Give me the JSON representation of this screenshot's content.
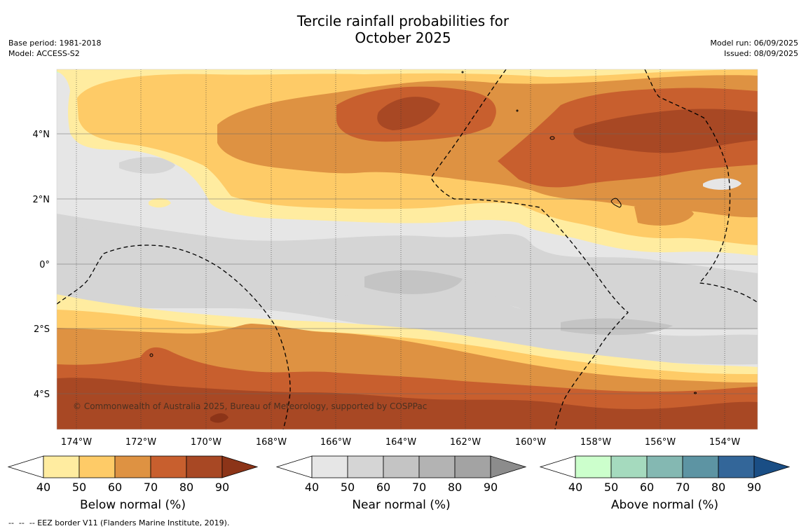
{
  "title_line1": "Tercile rainfall probabilities for",
  "title_line2": "October 2025",
  "meta_left": {
    "base_period": "Base period: 1981-2018",
    "model": "Model: ACCESS-S2"
  },
  "meta_right": {
    "model_run": "Model run: 06/09/2025",
    "issued": "Issued: 08/09/2025"
  },
  "copyright": "© Commonwealth of Australia 2025, Bureau of Meteorology, supported by COSPPac",
  "footer": "--  --  -- EEZ border V11 (Flanders Marine Institute, 2019).",
  "lon_labels": [
    "174°W",
    "172°W",
    "170°W",
    "168°W",
    "166°W",
    "164°W",
    "162°W",
    "160°W",
    "158°W",
    "156°W",
    "154°W"
  ],
  "lat_labels": [
    "4°N",
    "2°N",
    "0°",
    "2°S",
    "4°S"
  ],
  "colors": {
    "below": [
      "#FFECA0",
      "#FECB67",
      "#DE9242",
      "#C85F2E",
      "#A84824",
      "#8C3418"
    ],
    "near": [
      "#E6E6E6",
      "#D5D5D5",
      "#C4C4C4",
      "#B3B3B3",
      "#A3A3A3",
      "#8C8C8C"
    ],
    "above": [
      "#CCFFCC",
      "#A5DABE",
      "#84B8B2",
      "#5D94A3",
      "#336699",
      "#1A4E85"
    ]
  },
  "colorbars": [
    {
      "id": "below",
      "title": "Below normal (%)",
      "ticks": [
        "40",
        "50",
        "60",
        "70",
        "80",
        "90"
      ]
    },
    {
      "id": "near",
      "title": "Near normal (%)",
      "ticks": [
        "40",
        "50",
        "60",
        "70",
        "80",
        "90"
      ]
    },
    {
      "id": "above",
      "title": "Above normal (%)",
      "ticks": [
        "40",
        "50",
        "60",
        "70",
        "80",
        "90"
      ]
    }
  ]
}
